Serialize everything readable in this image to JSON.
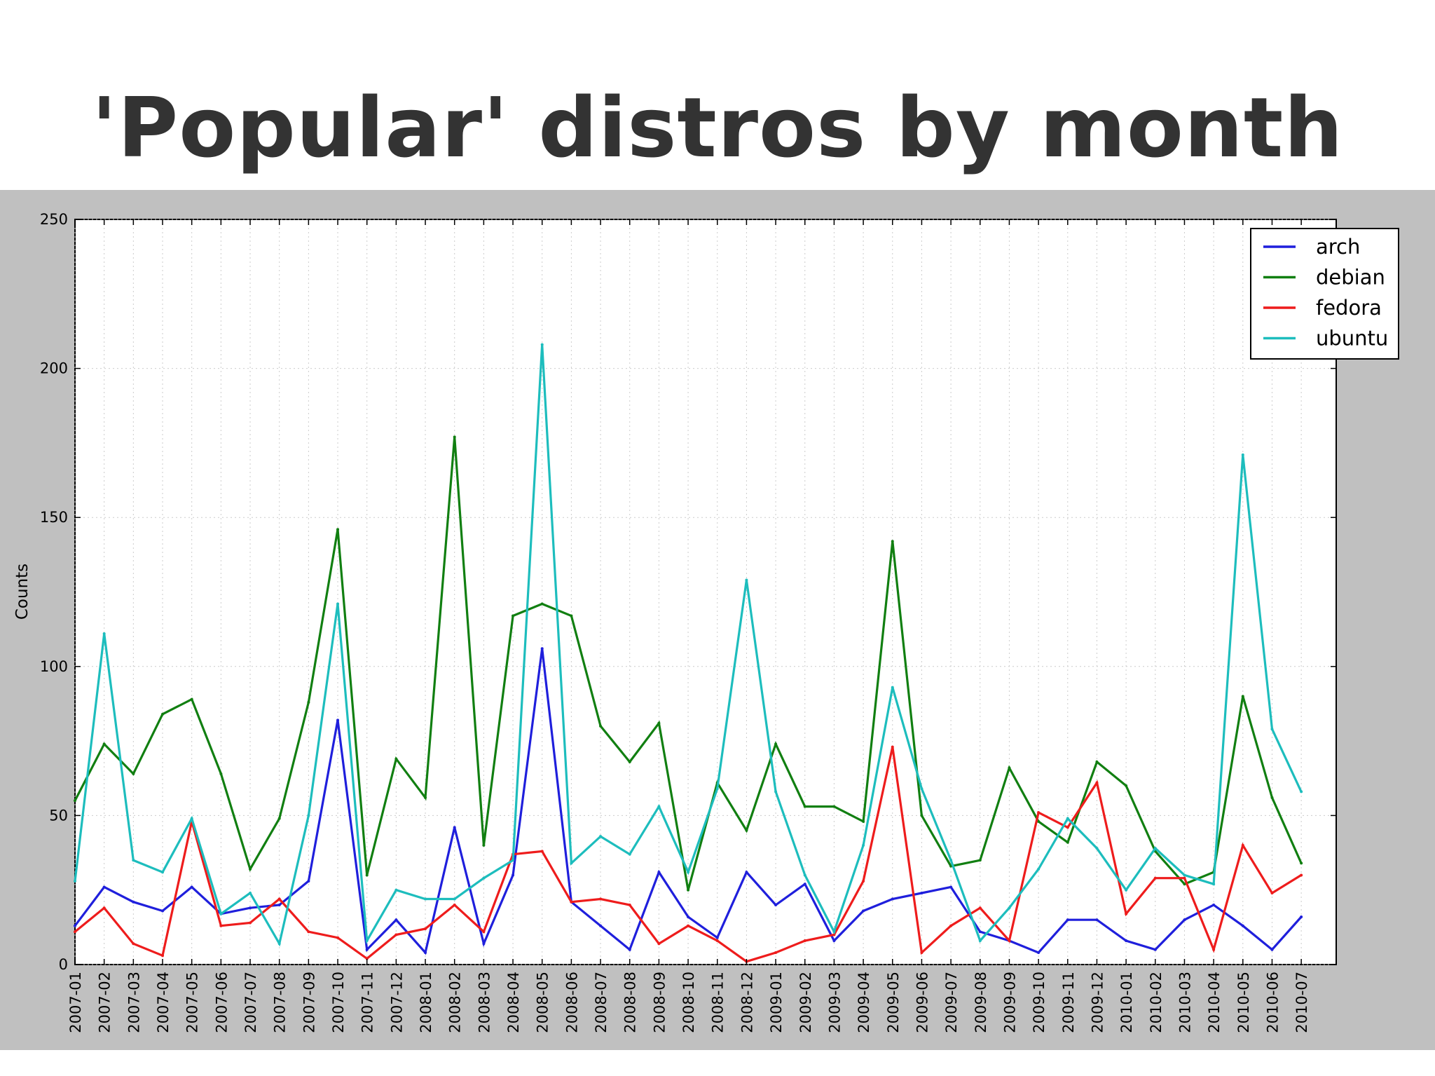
{
  "slide": {
    "title": "'Popular' distros by month"
  },
  "chart_data": {
    "type": "line",
    "title": "",
    "xlabel": "",
    "ylabel": "Counts",
    "ylim": [
      0,
      250
    ],
    "yticks": [
      0,
      50,
      100,
      150,
      200,
      250
    ],
    "grid": true,
    "legend_position": "top-right",
    "x": [
      "2007-01",
      "2007-02",
      "2007-03",
      "2007-04",
      "2007-05",
      "2007-06",
      "2007-07",
      "2007-08",
      "2007-09",
      "2007-10",
      "2007-11",
      "2007-12",
      "2008-01",
      "2008-02",
      "2008-03",
      "2008-04",
      "2008-05",
      "2008-06",
      "2008-07",
      "2008-08",
      "2008-09",
      "2008-10",
      "2008-11",
      "2008-12",
      "2009-01",
      "2009-02",
      "2009-03",
      "2009-04",
      "2009-05",
      "2009-06",
      "2009-07",
      "2009-08",
      "2009-09",
      "2009-10",
      "2009-11",
      "2009-12",
      "2010-01",
      "2010-02",
      "2010-03",
      "2010-04",
      "2010-05",
      "2010-06",
      "2010-07"
    ],
    "series": [
      {
        "name": "arch",
        "color": "#1f1fdc",
        "values": [
          13,
          26,
          21,
          18,
          26,
          17,
          19,
          20,
          28,
          82,
          5,
          15,
          4,
          46,
          7,
          30,
          106,
          21,
          13,
          5,
          31,
          16,
          9,
          31,
          20,
          27,
          8,
          18,
          22,
          24,
          26,
          11,
          8,
          4,
          15,
          15,
          8,
          5,
          15,
          20,
          13,
          5,
          16
        ]
      },
      {
        "name": "debian",
        "color": "#117f11",
        "values": [
          55,
          74,
          64,
          84,
          89,
          64,
          32,
          49,
          88,
          146,
          30,
          69,
          56,
          177,
          40,
          117,
          121,
          117,
          80,
          68,
          81,
          25,
          61,
          45,
          74,
          53,
          53,
          48,
          142,
          50,
          33,
          35,
          66,
          48,
          41,
          68,
          60,
          38,
          27,
          31,
          90,
          56,
          34
        ]
      },
      {
        "name": "fedora",
        "color": "#ee1c1c",
        "values": [
          11,
          19,
          7,
          3,
          48,
          13,
          14,
          22,
          11,
          9,
          2,
          10,
          12,
          20,
          11,
          37,
          38,
          21,
          22,
          20,
          7,
          13,
          8,
          1,
          4,
          8,
          10,
          28,
          73,
          4,
          13,
          19,
          8,
          51,
          46,
          61,
          17,
          29,
          29,
          5,
          40,
          24,
          30
        ]
      },
      {
        "name": "ubuntu",
        "color": "#1dbdbd",
        "values": [
          28,
          111,
          35,
          31,
          49,
          17,
          24,
          7,
          50,
          121,
          8,
          25,
          22,
          22,
          29,
          35,
          208,
          34,
          43,
          37,
          53,
          31,
          59,
          129,
          58,
          30,
          11,
          40,
          93,
          59,
          35,
          8,
          19,
          32,
          49,
          39,
          25,
          39,
          30,
          27,
          171,
          79,
          58
        ]
      }
    ]
  }
}
